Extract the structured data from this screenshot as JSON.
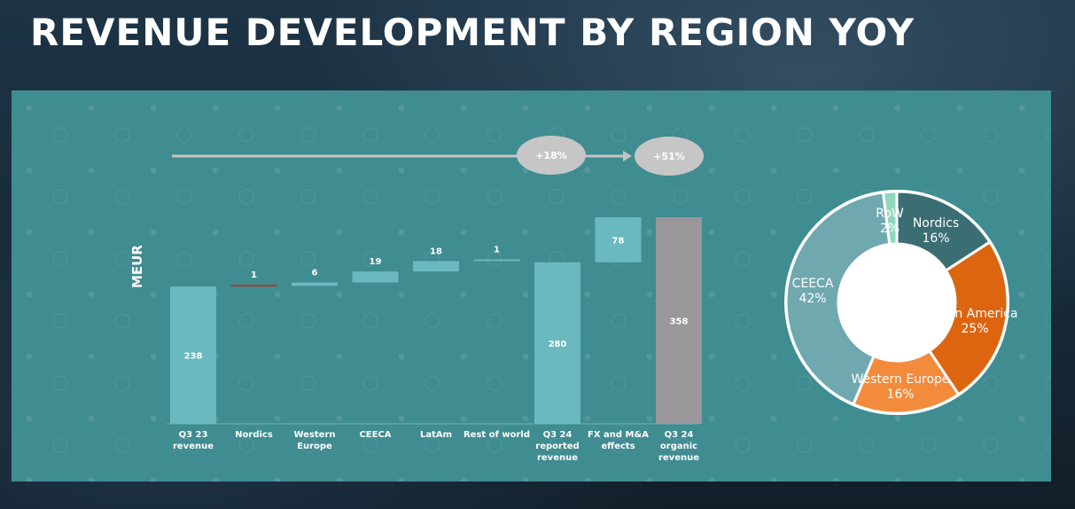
{
  "page": {
    "title": "REVENUE DEVELOPMENT BY REGION YOY"
  },
  "chart_data": [
    {
      "type": "bar",
      "subtype": "waterfall",
      "ylabel": "MEUR",
      "categories": [
        "Q3 23\nrevenue",
        "Nordics",
        "Western\nEurope",
        "CEECA",
        "LatAm",
        "Rest of world",
        "Q3 24\nreported\nrevenue",
        "FX and M&A\neffects",
        "Q3 24\norganic\nrevenue"
      ],
      "values": [
        238,
        1,
        6,
        19,
        18,
        1,
        280,
        78,
        358
      ],
      "value_labels": [
        "238",
        "1",
        "6",
        "19",
        "18",
        "1",
        "280",
        "78",
        "358"
      ],
      "kinds": [
        "total",
        "delta",
        "delta",
        "delta",
        "delta",
        "delta",
        "total",
        "delta",
        "total"
      ],
      "colors": [
        "#6ab9bf",
        "#b13a2e",
        "#6ab9bf",
        "#6ab9bf",
        "#6ab9bf",
        "#6ab9bf",
        "#6ab9bf",
        "#6ab9bf",
        "#9a979b"
      ],
      "ylim": [
        0,
        380
      ],
      "annotations": [
        {
          "text": "+18%"
        },
        {
          "text": "+51%"
        }
      ]
    },
    {
      "type": "pie",
      "subtype": "donut",
      "slices": [
        {
          "name": "Nordics",
          "value": 16,
          "label": "16%",
          "color": "#3a6e73"
        },
        {
          "name": "Latin America",
          "value": 25,
          "label": "25%",
          "color": "#dd6510"
        },
        {
          "name": "Western Europe",
          "value": 16,
          "label": "16%",
          "color": "#f28b3c"
        },
        {
          "name": "CEECA",
          "value": 42,
          "label": "42%",
          "color": "#6fa9af"
        },
        {
          "name": "RoW",
          "value": 2,
          "label": "2%",
          "color": "#8fd8bd"
        }
      ]
    }
  ]
}
